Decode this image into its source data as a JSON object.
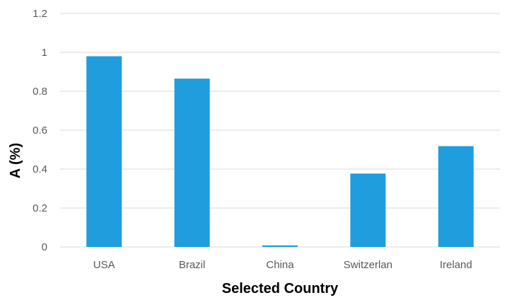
{
  "chart_data": {
    "type": "bar",
    "title": "",
    "xlabel": "Selected Country",
    "ylabel": "A (%)",
    "categories": [
      "USA",
      "Brazil",
      "China",
      "Switzerlan",
      "Ireland"
    ],
    "values": [
      0.98,
      0.865,
      0.008,
      0.377,
      0.518
    ],
    "ylim": [
      0,
      1.2
    ],
    "yticks": [
      "0",
      "0.2",
      "0.4",
      "0.6",
      "0.8",
      "1",
      "1.2"
    ],
    "grid": true,
    "legend": "none",
    "bar_color": "#1f9ddc"
  }
}
